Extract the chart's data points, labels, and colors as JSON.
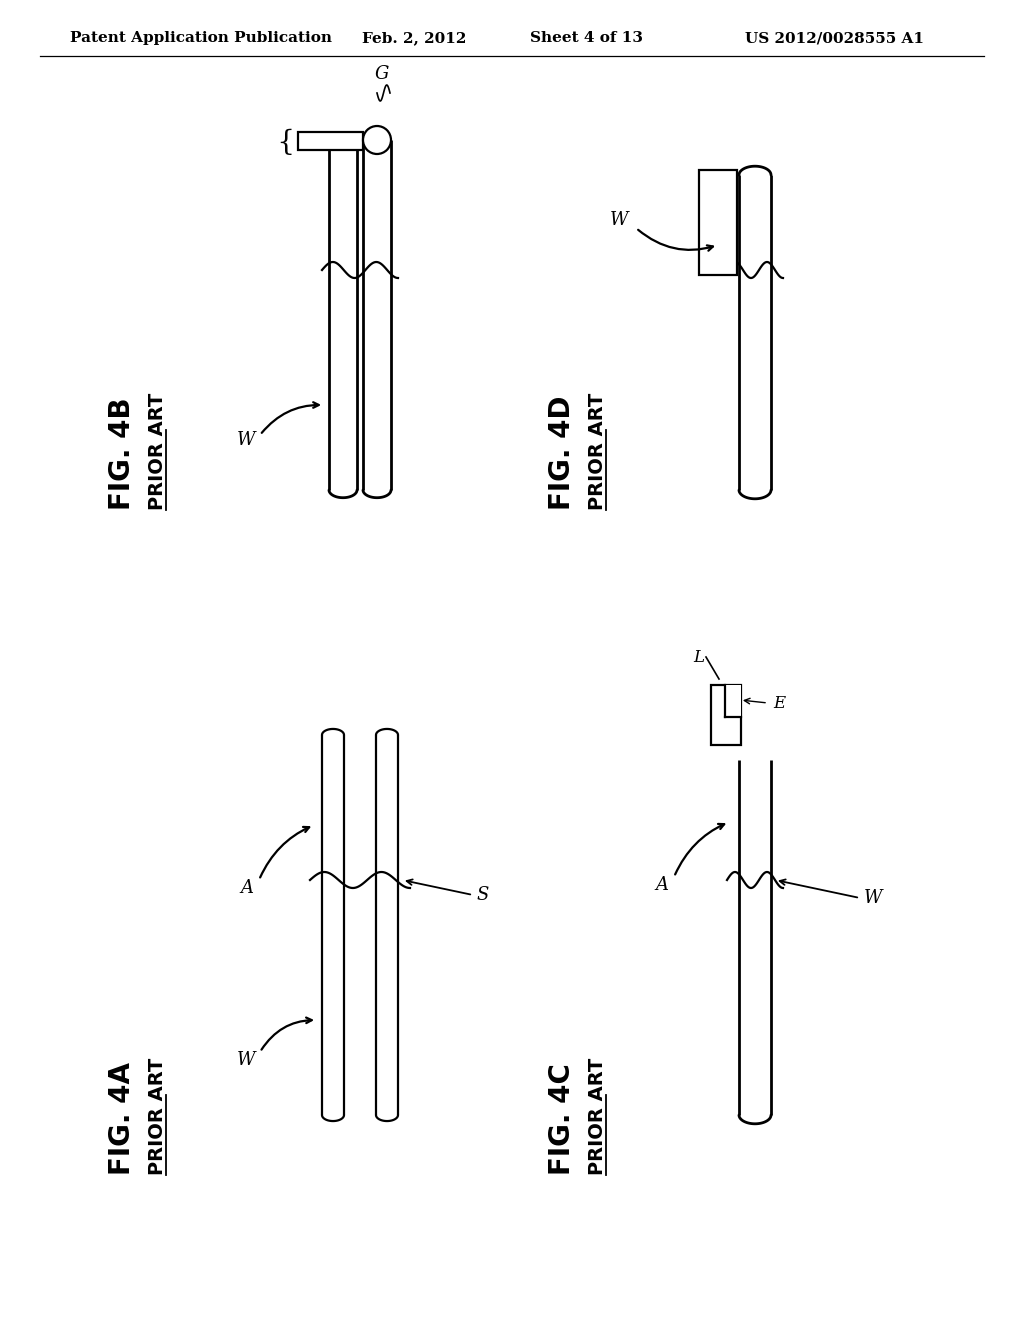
{
  "bg_color": "#ffffff",
  "line_color": "#000000",
  "header_left": "Patent Application Publication",
  "header_date": "Feb. 2, 2012",
  "header_sheet": "Sheet 4 of 13",
  "header_patent": "US 2012/0028555 A1"
}
